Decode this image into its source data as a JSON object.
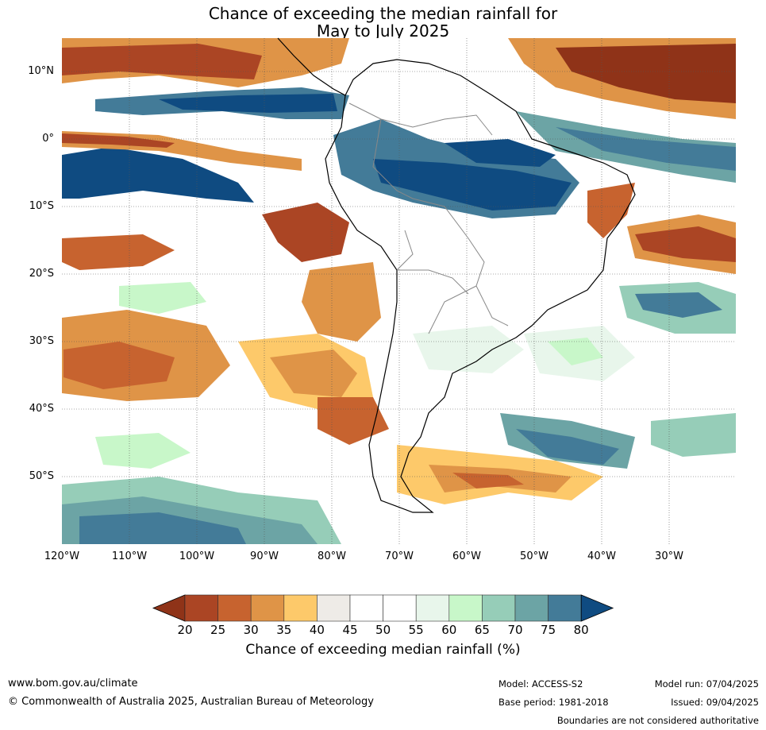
{
  "title_line1": "Chance of exceeding the median rainfall for",
  "title_line2": "May to July 2025",
  "lat_labels": [
    "10°N",
    "0°",
    "10°S",
    "20°S",
    "30°S",
    "40°S",
    "50°S"
  ],
  "lon_labels": [
    "120°W",
    "110°W",
    "100°W",
    "90°W",
    "80°W",
    "70°W",
    "60°W",
    "50°W",
    "40°W",
    "30°W"
  ],
  "colorbar": {
    "ticks": [
      "20",
      "25",
      "30",
      "35",
      "40",
      "45",
      "50",
      "55",
      "60",
      "65",
      "70",
      "75",
      "80"
    ],
    "title": "Chance of exceeding median rainfall (%)",
    "colors": [
      "#8f3318",
      "#ab4524",
      "#c7632f",
      "#df9447",
      "#fdc96a",
      "#eeebe7",
      "#ffffff",
      "#ffffff",
      "#e8f6eb",
      "#c8f7c9",
      "#96cdb8",
      "#6ca4a5",
      "#437b98",
      "#0f4b81"
    ]
  },
  "footer": {
    "url": "www.bom.gov.au/climate",
    "copyright": "© Commonwealth of Australia 2025, Australian Bureau of Meteorology",
    "model": "Model: ACCESS-S2",
    "base_period": "Base period: 1981-2018",
    "model_run": "Model run: 07/04/2025",
    "issued": "Issued: 09/04/2025",
    "boundaries": "Boundaries are not considered authoritative"
  }
}
